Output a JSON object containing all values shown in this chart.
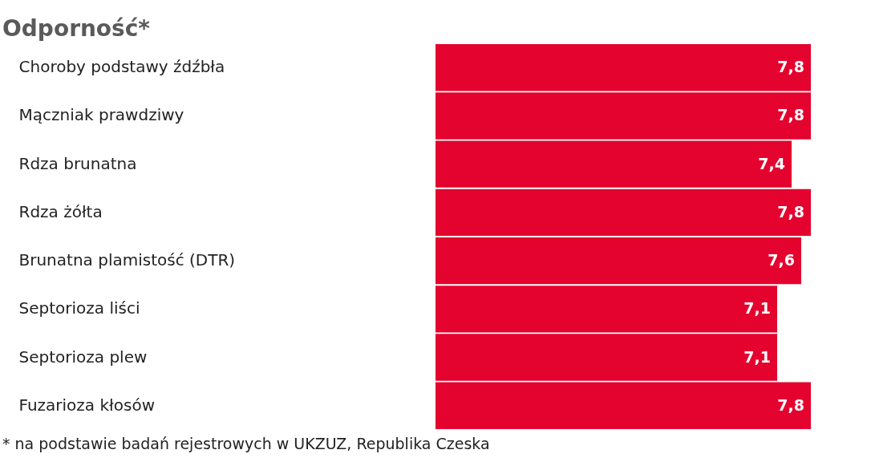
{
  "chart_data": {
    "type": "bar",
    "orientation": "horizontal",
    "title": "Odporność*",
    "categories": [
      "Choroby podstawy źdźbła",
      "Mączniak prawdziwy",
      "Rdza brunatna",
      "Rdza żółta",
      "Brunatna plamistość (DTR)",
      "Septorioza liści",
      "Septorioza plew",
      "Fuzarioza kłosów"
    ],
    "values": [
      7.8,
      7.8,
      7.4,
      7.8,
      7.6,
      7.1,
      7.1,
      7.8
    ],
    "value_labels": [
      "7,8",
      "7,8",
      "7,4",
      "7,8",
      "7,6",
      "7,1",
      "7,1",
      "7,8"
    ],
    "color": "#e4032e",
    "xlim": [
      0,
      9
    ],
    "tick_labels": "y",
    "grid": false,
    "annotations": [
      "* na podstawie badań rejestrowych w UKZUZ, Republika Czeska"
    ]
  }
}
